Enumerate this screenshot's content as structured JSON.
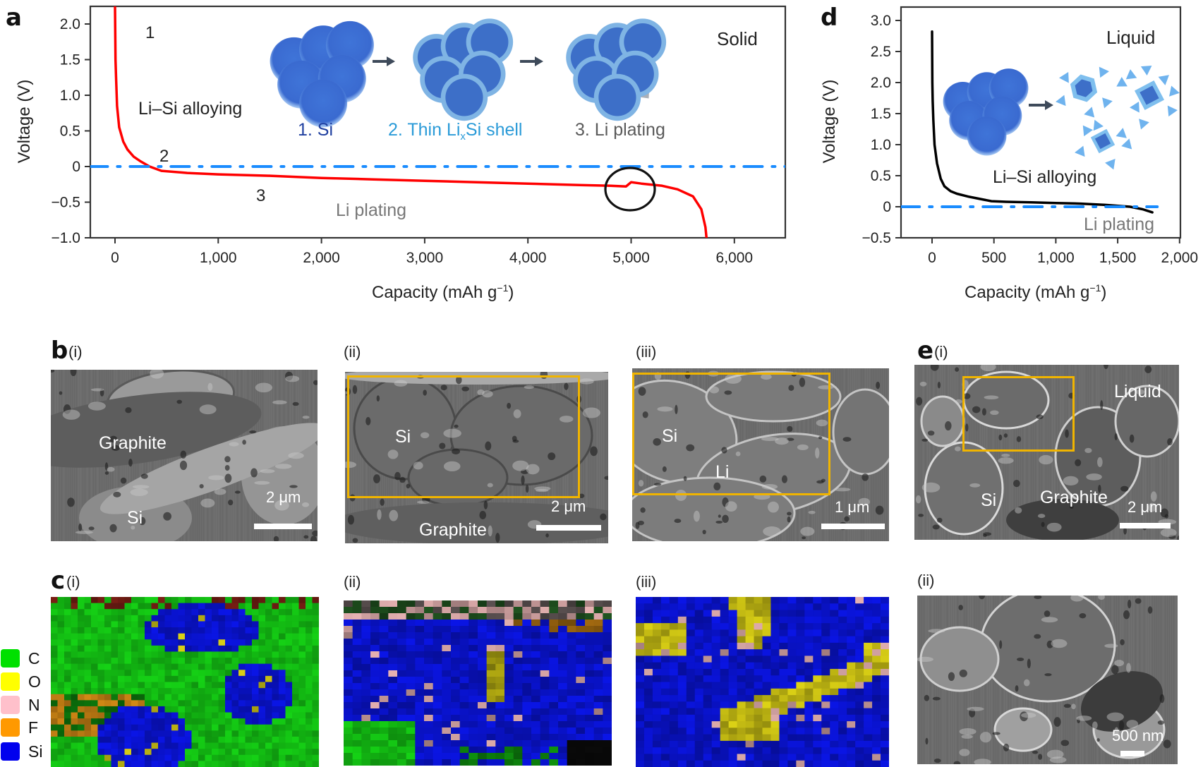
{
  "panels": {
    "a": {
      "letter": "a",
      "condition": "Solid",
      "region_labels": [
        "1",
        "2",
        "3"
      ],
      "alloying_label": "Li–Si alloying",
      "plating_label": "Li plating",
      "schematic_steps": [
        {
          "label": "1. Si",
          "color": "#1f3f9f"
        },
        {
          "label_pre": "2. Thin Li",
          "label_sub": "x",
          "label_post": "Si shell",
          "color": "#2b9bd8"
        },
        {
          "label": "3. Li plating",
          "color": "#5a5a5a"
        }
      ]
    },
    "d": {
      "letter": "d",
      "condition": "Liquid",
      "alloying_label": "Li–Si alloying",
      "plating_label": "Li plating"
    },
    "b": {
      "letter": "b",
      "images": [
        {
          "sub": "(i)",
          "labels": [
            "Graphite",
            "Si"
          ],
          "scale": "2 μm"
        },
        {
          "sub": "(ii)",
          "labels": [
            "Si",
            "Graphite"
          ],
          "scale": "2 μm"
        },
        {
          "sub": "(iii)",
          "labels": [
            "Si",
            "Li"
          ],
          "scale": "1 μm"
        }
      ]
    },
    "c": {
      "letter": "c",
      "images": [
        {
          "sub": "(i)"
        },
        {
          "sub": "(ii)"
        },
        {
          "sub": "(iii)"
        }
      ],
      "legend": [
        {
          "element": "C",
          "color": "#00e000"
        },
        {
          "element": "O",
          "color": "#ffff00"
        },
        {
          "element": "N",
          "color": "#ffc0cb"
        },
        {
          "element": "F",
          "color": "#ff9900"
        },
        {
          "element": "Si",
          "color": "#0000ee"
        }
      ]
    },
    "e": {
      "letter": "e",
      "images": [
        {
          "sub": "(i)",
          "labels": [
            "Liquid",
            "Si",
            "Graphite"
          ],
          "scale": "2 μm"
        },
        {
          "sub": "(ii)",
          "scale": "500 nm"
        }
      ]
    }
  },
  "chart_data": [
    {
      "id": "a",
      "type": "line",
      "title": "Solid",
      "xlabel": "Capacity (mAh g⁻¹)",
      "ylabel": "Voltage (V)",
      "xlim": [
        -250,
        6500
      ],
      "ylim": [
        -1.0,
        2.25
      ],
      "xticks": [
        "0",
        "1,000",
        "2,000",
        "3,000",
        "4,000",
        "5,000",
        "6,000"
      ],
      "xtick_values": [
        0,
        1000,
        2000,
        3000,
        4000,
        5000,
        6000
      ],
      "yticks": [
        "2.0",
        "1.5",
        "1.0",
        "0.5",
        "0",
        "−0.5",
        "−1.0"
      ],
      "ytick_values": [
        2.0,
        1.5,
        1.0,
        0.5,
        0,
        -0.5,
        -1.0
      ],
      "grid": false,
      "series": [
        {
          "name": "solid-electrolyte discharge",
          "color": "#ff0000",
          "x": [
            0,
            5,
            10,
            20,
            40,
            80,
            120,
            180,
            250,
            335,
            450,
            700,
            1000,
            1500,
            2000,
            2500,
            3000,
            3500,
            4000,
            4500,
            4800,
            4950,
            5000,
            5100,
            5300,
            5450,
            5600,
            5680,
            5720,
            5730
          ],
          "y": [
            2.25,
            1.5,
            1.25,
            0.85,
            0.55,
            0.35,
            0.24,
            0.14,
            0.07,
            0.0,
            -0.06,
            -0.09,
            -0.11,
            -0.13,
            -0.16,
            -0.18,
            -0.2,
            -0.22,
            -0.24,
            -0.26,
            -0.27,
            -0.28,
            -0.22,
            -0.24,
            -0.27,
            -0.32,
            -0.42,
            -0.6,
            -0.85,
            -1.0
          ]
        },
        {
          "name": "0 V reference",
          "color": "#1a8cff",
          "style": "dash-dot",
          "x": [
            -250,
            6500
          ],
          "y": [
            0,
            0
          ]
        }
      ],
      "annotations": [
        "1",
        "2",
        "3",
        "Li–Si alloying",
        "Li plating",
        "1. Si",
        "2. Thin LixSi shell",
        "3. Li plating",
        "circle at ~5,000 mAh g⁻¹"
      ]
    },
    {
      "id": "d",
      "type": "line",
      "title": "Liquid",
      "xlabel": "Capacity (mAh g⁻¹)",
      "ylabel": "Voltage (V)",
      "xlim": [
        -250,
        2000
      ],
      "ylim": [
        -0.5,
        3.2
      ],
      "xticks": [
        "0",
        "500",
        "1,000",
        "1,500",
        "2,000"
      ],
      "xtick_values": [
        0,
        500,
        1000,
        1500,
        2000
      ],
      "yticks": [
        "3.0",
        "2.5",
        "2.0",
        "1.5",
        "1.0",
        "0.5",
        "0",
        "−0.5"
      ],
      "ytick_values": [
        3.0,
        2.5,
        2.0,
        1.5,
        1.0,
        0.5,
        0,
        -0.5
      ],
      "grid": false,
      "series": [
        {
          "name": "liquid-electrolyte discharge",
          "color": "#000000",
          "x": [
            0,
            2,
            5,
            10,
            20,
            40,
            70,
            100,
            150,
            200,
            300,
            400,
            480,
            600,
            800,
            1000,
            1200,
            1400,
            1600,
            1700,
            1780
          ],
          "y": [
            2.82,
            2.0,
            1.7,
            1.4,
            1.0,
            0.7,
            0.45,
            0.33,
            0.25,
            0.21,
            0.16,
            0.12,
            0.09,
            0.08,
            0.07,
            0.06,
            0.05,
            0.03,
            0.0,
            -0.04,
            -0.09
          ]
        },
        {
          "name": "0 V reference",
          "color": "#1a8cff",
          "style": "dash-dot",
          "x": [
            -250,
            1820
          ],
          "y": [
            0,
            0
          ]
        }
      ],
      "annotations": [
        "Li–Si alloying",
        "Li plating"
      ]
    }
  ]
}
